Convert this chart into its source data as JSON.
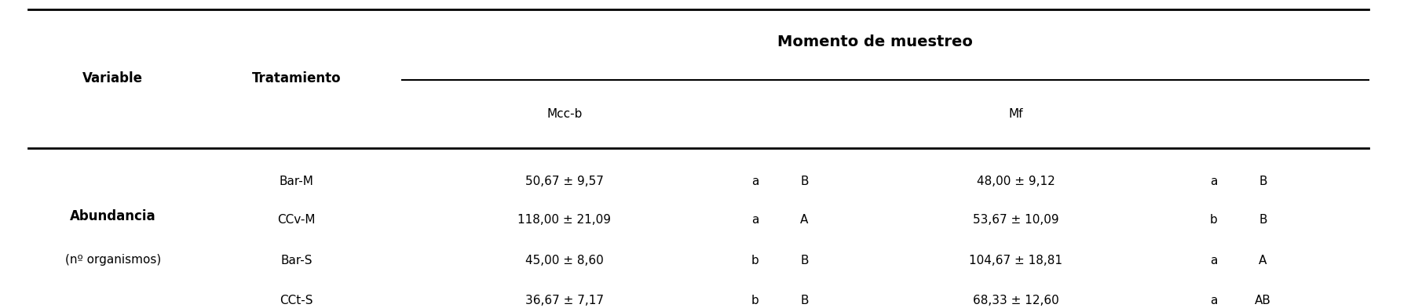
{
  "title_row": "Momento de muestreo",
  "col_headers": [
    "Variable",
    "Tratamiento",
    "Mcc-b",
    "",
    "Mf",
    ""
  ],
  "subheaders": [
    "",
    "",
    "Mcc-b",
    "",
    "Mf",
    ""
  ],
  "treatments": [
    "Bar-M",
    "CCv-M",
    "Bar-S",
    "CCt-S"
  ],
  "variable_label": "Abundancia",
  "variable_sublabel": "(nº organismos)",
  "variable_row": 1,
  "data": [
    {
      "treatment": "Bar-M",
      "mccb_val": "50,67 ± 9,57",
      "mccb_lc": "a",
      "mccb_uc": "B",
      "mf_val": "48,00 ± 9,12",
      "mf_lc": "a",
      "mf_uc": "B"
    },
    {
      "treatment": "CCv-M",
      "mccb_val": "118,00 ± 21,09",
      "mccb_lc": "a",
      "mccb_uc": "A",
      "mf_val": "53,67 ± 10,09",
      "mf_lc": "b",
      "mf_uc": "B"
    },
    {
      "treatment": "Bar-S",
      "mccb_val": "45,00 ± 8,60",
      "mccb_lc": "b",
      "mccb_uc": "B",
      "mf_val": "104,67 ± 18,81",
      "mf_lc": "a",
      "mf_uc": "A"
    },
    {
      "treatment": "CCt-S",
      "mccb_val": "36,67 ± 7,17",
      "mccb_lc": "b",
      "mccb_uc": "B",
      "mf_val": "68,33 ± 12,60",
      "mf_lc": "a",
      "mf_uc": "AB"
    }
  ],
  "bg_color": "#ffffff",
  "text_color": "#000000",
  "font_size": 11,
  "header_font_size": 12
}
